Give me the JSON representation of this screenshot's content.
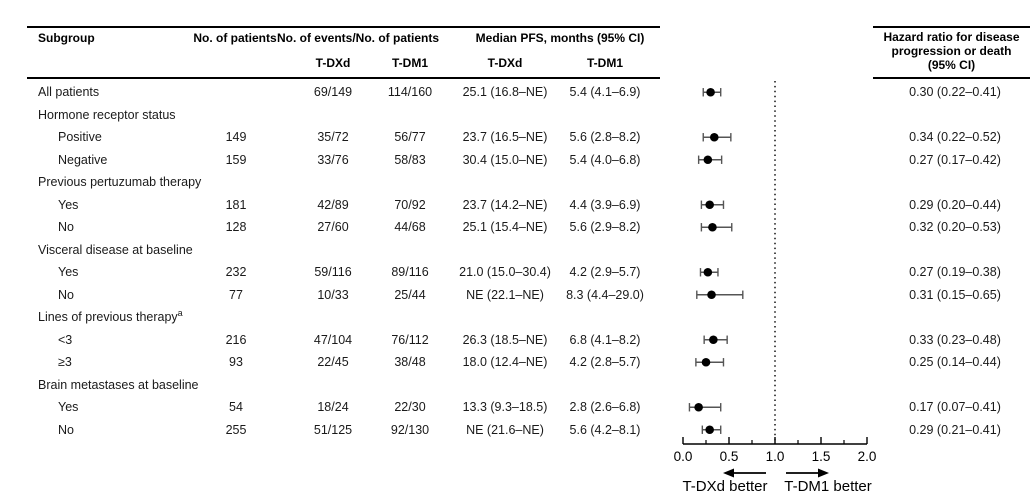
{
  "header": {
    "subgroup": "Subgroup",
    "patients": "No. of patients",
    "events": "No. of events/No. of patients",
    "pfs": "Median PFS, months (95% CI)",
    "events_sub_tdxd": "T-DXd",
    "events_sub_tdm1": "T-DM1",
    "pfs_sub_tdxd": "T-DXd",
    "pfs_sub_tdm1": "T-DM1",
    "hr_line1": "Hazard ratio for disease",
    "hr_line2": "progression or death",
    "hr_line3": "(95% CI)"
  },
  "chart_data": {
    "type": "scatter",
    "subtype": "forest-plot",
    "title": "",
    "xlabel": "Hazard ratio for disease progression or death (95% CI)",
    "axis": {
      "min": 0,
      "max": 2,
      "major_ticks": [
        0,
        0.5,
        1,
        1.5,
        2
      ],
      "minor_ticks": [
        0.25,
        0.75,
        1.25,
        1.75
      ],
      "tick_labels": [
        "0.0",
        "0.5",
        "1.0",
        "1.5",
        "2.0"
      ],
      "reference_line": 1.0,
      "left_arrow_label": "T-DXd better",
      "right_arrow_label": "T-DM1 better"
    },
    "rows": [
      {
        "type": "overall",
        "label": "All patients",
        "events_tdxd": "69/149",
        "events_tdm1": "114/160",
        "pfs_tdxd": "25.1 (16.8–NE)",
        "pfs_tdm1": "5.4 (4.1–6.9)",
        "hr_text": "0.30 (0.22–0.41)",
        "hr": 0.3,
        "lo": 0.22,
        "hi": 0.41
      },
      {
        "type": "section",
        "label": "Hormone receptor status"
      },
      {
        "type": "item",
        "label": "Positive",
        "patients": "149",
        "events_tdxd": "35/72",
        "events_tdm1": "56/77",
        "pfs_tdxd": "23.7 (16.5–NE)",
        "pfs_tdm1": "5.6 (2.8–8.2)",
        "hr_text": "0.34 (0.22–0.52)",
        "hr": 0.34,
        "lo": 0.22,
        "hi": 0.52
      },
      {
        "type": "item",
        "label": "Negative",
        "patients": "159",
        "events_tdxd": "33/76",
        "events_tdm1": "58/83",
        "pfs_tdxd": "30.4 (15.0–NE)",
        "pfs_tdm1": "5.4 (4.0–6.8)",
        "hr_text": "0.27 (0.17–0.42)",
        "hr": 0.27,
        "lo": 0.17,
        "hi": 0.42
      },
      {
        "type": "section",
        "label": "Previous pertuzumab therapy"
      },
      {
        "type": "item",
        "label": "Yes",
        "patients": "181",
        "events_tdxd": "42/89",
        "events_tdm1": "70/92",
        "pfs_tdxd": "23.7 (14.2–NE)",
        "pfs_tdm1": "4.4 (3.9–6.9)",
        "hr_text": "0.29 (0.20–0.44)",
        "hr": 0.29,
        "lo": 0.2,
        "hi": 0.44
      },
      {
        "type": "item",
        "label": "No",
        "patients": "128",
        "events_tdxd": "27/60",
        "events_tdm1": "44/68",
        "pfs_tdxd": "25.1 (15.4–NE)",
        "pfs_tdm1": "5.6 (2.9–8.2)",
        "hr_text": "0.32 (0.20–0.53)",
        "hr": 0.32,
        "lo": 0.2,
        "hi": 0.53
      },
      {
        "type": "section",
        "label": "Visceral disease at baseline"
      },
      {
        "type": "item",
        "label": "Yes",
        "patients": "232",
        "events_tdxd": "59/116",
        "events_tdm1": "89/116",
        "pfs_tdxd": "21.0 (15.0–30.4)",
        "pfs_tdm1": "4.2 (2.9–5.7)",
        "hr_text": "0.27 (0.19–0.38)",
        "hr": 0.27,
        "lo": 0.19,
        "hi": 0.38
      },
      {
        "type": "item",
        "label": "No",
        "patients": "77",
        "events_tdxd": "10/33",
        "events_tdm1": "25/44",
        "pfs_tdxd": "NE (22.1–NE)",
        "pfs_tdm1": "8.3 (4.4–29.0)",
        "hr_text": "0.31 (0.15–0.65)",
        "hr": 0.31,
        "lo": 0.15,
        "hi": 0.65
      },
      {
        "type": "section",
        "label": "Lines of previous therapy",
        "sup": "a"
      },
      {
        "type": "item",
        "label": "<3",
        "patients": "216",
        "events_tdxd": "47/104",
        "events_tdm1": "76/112",
        "pfs_tdxd": "26.3 (18.5–NE)",
        "pfs_tdm1": "6.8 (4.1–8.2)",
        "hr_text": "0.33 (0.23–0.48)",
        "hr": 0.33,
        "lo": 0.23,
        "hi": 0.48
      },
      {
        "type": "item",
        "label": "≥3",
        "patients": "93",
        "events_tdxd": "22/45",
        "events_tdm1": "38/48",
        "pfs_tdxd": "18.0 (12.4–NE)",
        "pfs_tdm1": "4.2 (2.8–5.7)",
        "hr_text": "0.25 (0.14–0.44)",
        "hr": 0.25,
        "lo": 0.14,
        "hi": 0.44
      },
      {
        "type": "section",
        "label": "Brain metastases at baseline"
      },
      {
        "type": "item",
        "label": "Yes",
        "patients": "54",
        "events_tdxd": "18/24",
        "events_tdm1": "22/30",
        "pfs_tdxd": "13.3 (9.3–18.5)",
        "pfs_tdm1": "2.8 (2.6–6.8)",
        "hr_text": "0.17 (0.07–0.41)",
        "hr": 0.17,
        "lo": 0.07,
        "hi": 0.41
      },
      {
        "type": "item",
        "label": "No",
        "patients": "255",
        "events_tdxd": "51/125",
        "events_tdm1": "92/130",
        "pfs_tdxd": "NE (21.6–NE)",
        "pfs_tdm1": "5.6 (4.2–8.1)",
        "hr_text": "0.29 (0.21–0.41)",
        "hr": 0.29,
        "lo": 0.21,
        "hi": 0.41
      }
    ],
    "colors": {
      "marker": "#000000",
      "ci_line": "#555555",
      "reference_line": "#000000",
      "text": "#000000"
    }
  }
}
